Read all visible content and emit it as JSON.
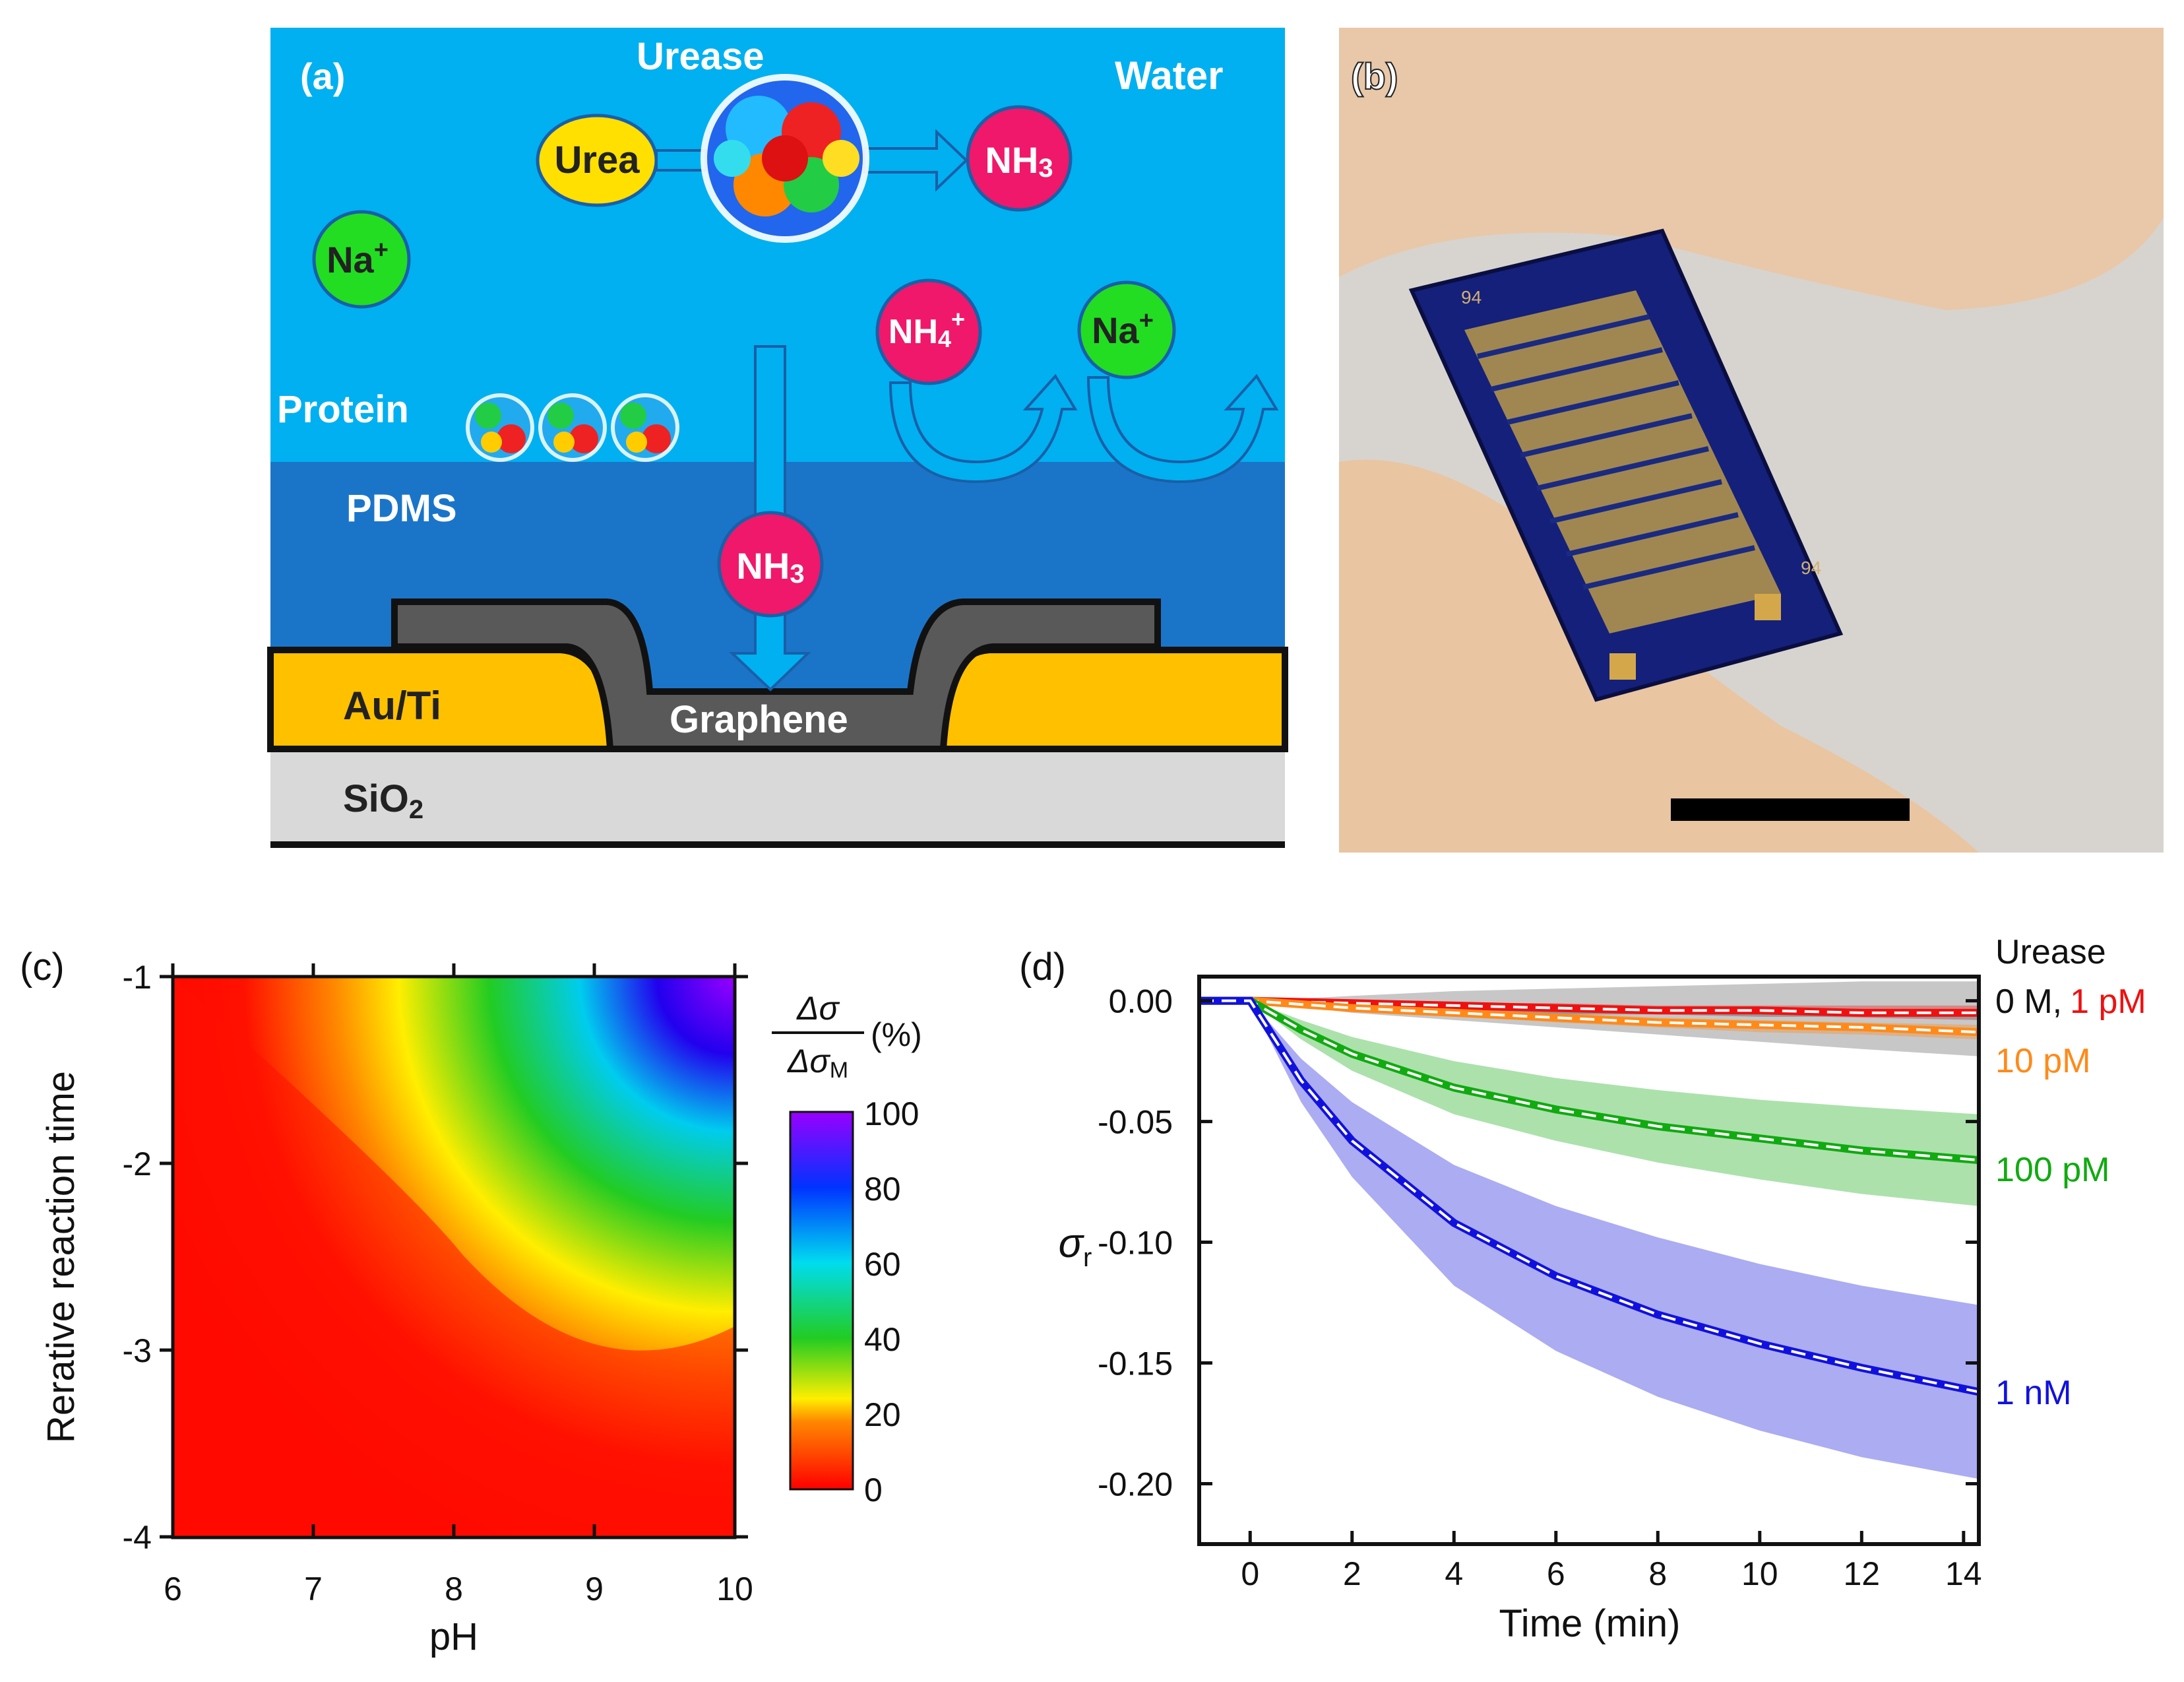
{
  "panel_a": {
    "label": "(a)",
    "urease": "Urease",
    "water": "Water",
    "urea": "Urea",
    "nh3_top": "NH",
    "nh3_top_sub": "3",
    "na_left": "Na",
    "na_sup": "+",
    "nh4": "NH",
    "nh4_sub": "4",
    "nh4_sup": "+",
    "na_right": "Na",
    "protein": "Protein",
    "pdms": "PDMS",
    "nh3_mid": "NH",
    "nh3_mid_sub": "3",
    "auti": "Au/Ti",
    "graphene": "Graphene",
    "sio2": "SiO",
    "sio2_sub": "2",
    "colors": {
      "water": "#00b0f0",
      "pdms": "#1a75c9",
      "gold": "#ffc000",
      "graphene": "#595959",
      "sio2": "#d9d9d9",
      "ion_red": "#f0186a",
      "ion_green": "#22dd22",
      "urea": "#ffe000"
    }
  },
  "panel_b": {
    "label": "(b)",
    "chip_label_1": "94",
    "chip_label_2": "94"
  },
  "panel_c": {
    "label": "(c)",
    "ylabel": "Rerative reaction time",
    "xlabel": "pH",
    "x_ticks": [
      "6",
      "7",
      "8",
      "9",
      "10"
    ],
    "y_ticks": [
      "-1",
      "-2",
      "-3",
      "-4"
    ],
    "colorbar_title_num": "Δσ",
    "colorbar_title_den": "Δσ",
    "colorbar_title_den_sub": "M",
    "colorbar_unit": "(%)",
    "colorbar_ticks": [
      "100",
      "80",
      "60",
      "40",
      "20",
      "0"
    ]
  },
  "chart_data": [
    {
      "type": "heatmap",
      "title": "",
      "xlabel": "pH",
      "ylabel": "Rerative reaction time",
      "xlim": [
        6,
        10
      ],
      "ylim": [
        -4,
        -1
      ],
      "colorbar_range": [
        0,
        100
      ],
      "colorbar_label": "Δσ/Δσ_M (%)"
    },
    {
      "type": "line",
      "xlabel": "Time (min)",
      "ylabel": "σ",
      "ylabel_sub": "r",
      "xlim": [
        -1,
        14.3
      ],
      "ylim": [
        -0.225,
        0.01
      ],
      "x_ticks": [
        "0",
        "2",
        "4",
        "6",
        "8",
        "10",
        "12",
        "14"
      ],
      "y_ticks": [
        "0.00",
        "-0.05",
        "-0.10",
        "-0.15",
        "-0.20"
      ],
      "legend_title": "Urease",
      "series": [
        {
          "name": "0 M",
          "color": "#999999",
          "x": [
            -1,
            0,
            2,
            4,
            6,
            8,
            10,
            12,
            14.3
          ],
          "values": [
            0,
            0,
            -0.002,
            -0.003,
            -0.004,
            -0.004,
            -0.005,
            -0.005,
            -0.006
          ],
          "band_upper": [
            0,
            0,
            0.002,
            0.004,
            0.005,
            0.006,
            0.007,
            0.008,
            0.008
          ],
          "band_lower": [
            0,
            0,
            -0.005,
            -0.008,
            -0.011,
            -0.014,
            -0.017,
            -0.02,
            -0.023
          ]
        },
        {
          "name": "1 pM",
          "color": "#ee1111",
          "x": [
            -1,
            0,
            2,
            4,
            6,
            8,
            10,
            12,
            14.3
          ],
          "values": [
            0,
            0,
            -0.001,
            -0.002,
            -0.003,
            -0.004,
            -0.004,
            -0.005,
            -0.005
          ],
          "band_upper": [
            0,
            0,
            0,
            -0.001,
            -0.001,
            -0.002,
            -0.002,
            -0.002,
            -0.002
          ],
          "band_lower": [
            0,
            0,
            -0.002,
            -0.003,
            -0.004,
            -0.005,
            -0.006,
            -0.007,
            -0.008
          ]
        },
        {
          "name": "10 pM",
          "color": "#ff8a1a",
          "x": [
            -1,
            0,
            2,
            4,
            6,
            8,
            10,
            12,
            14.3
          ],
          "values": [
            0,
            0,
            -0.003,
            -0.005,
            -0.007,
            -0.009,
            -0.01,
            -0.011,
            -0.013
          ],
          "band_upper": [
            0,
            0,
            -0.002,
            -0.004,
            -0.005,
            -0.007,
            -0.008,
            -0.009,
            -0.01
          ],
          "band_lower": [
            0,
            0,
            -0.004,
            -0.006,
            -0.009,
            -0.011,
            -0.013,
            -0.014,
            -0.016
          ]
        },
        {
          "name": "100 pM",
          "color": "#11aa11",
          "x": [
            -1,
            0,
            1,
            2,
            4,
            6,
            8,
            10,
            12,
            14.3
          ],
          "values": [
            0,
            0,
            -0.012,
            -0.022,
            -0.036,
            -0.045,
            -0.052,
            -0.057,
            -0.062,
            -0.066
          ],
          "band_upper": [
            0,
            0,
            -0.008,
            -0.015,
            -0.025,
            -0.032,
            -0.037,
            -0.041,
            -0.044,
            -0.047
          ],
          "band_lower": [
            0,
            0,
            -0.016,
            -0.029,
            -0.047,
            -0.058,
            -0.067,
            -0.074,
            -0.08,
            -0.085
          ]
        },
        {
          "name": "1 nM",
          "color": "#1111dd",
          "x": [
            -1,
            0,
            1,
            2,
            4,
            6,
            8,
            10,
            12,
            14.3
          ],
          "values": [
            0,
            0,
            -0.033,
            -0.058,
            -0.092,
            -0.114,
            -0.13,
            -0.142,
            -0.152,
            -0.162
          ],
          "band_upper": [
            0,
            0,
            -0.024,
            -0.042,
            -0.068,
            -0.085,
            -0.098,
            -0.109,
            -0.118,
            -0.126
          ],
          "band_lower": [
            0,
            0,
            -0.042,
            -0.073,
            -0.118,
            -0.145,
            -0.164,
            -0.178,
            -0.189,
            -0.198
          ]
        }
      ]
    }
  ],
  "panel_d": {
    "label": "(d)",
    "xlabel": "Time (min)",
    "ylabel": "σ",
    "ylabel_sub": "r",
    "legend_title": "Urease",
    "legend_0m": "0 M,",
    "legend_1pm": "1 pM",
    "legend_10pm": "10 pM",
    "legend_100pm": "100 pM",
    "legend_1nm": "1 nM"
  }
}
